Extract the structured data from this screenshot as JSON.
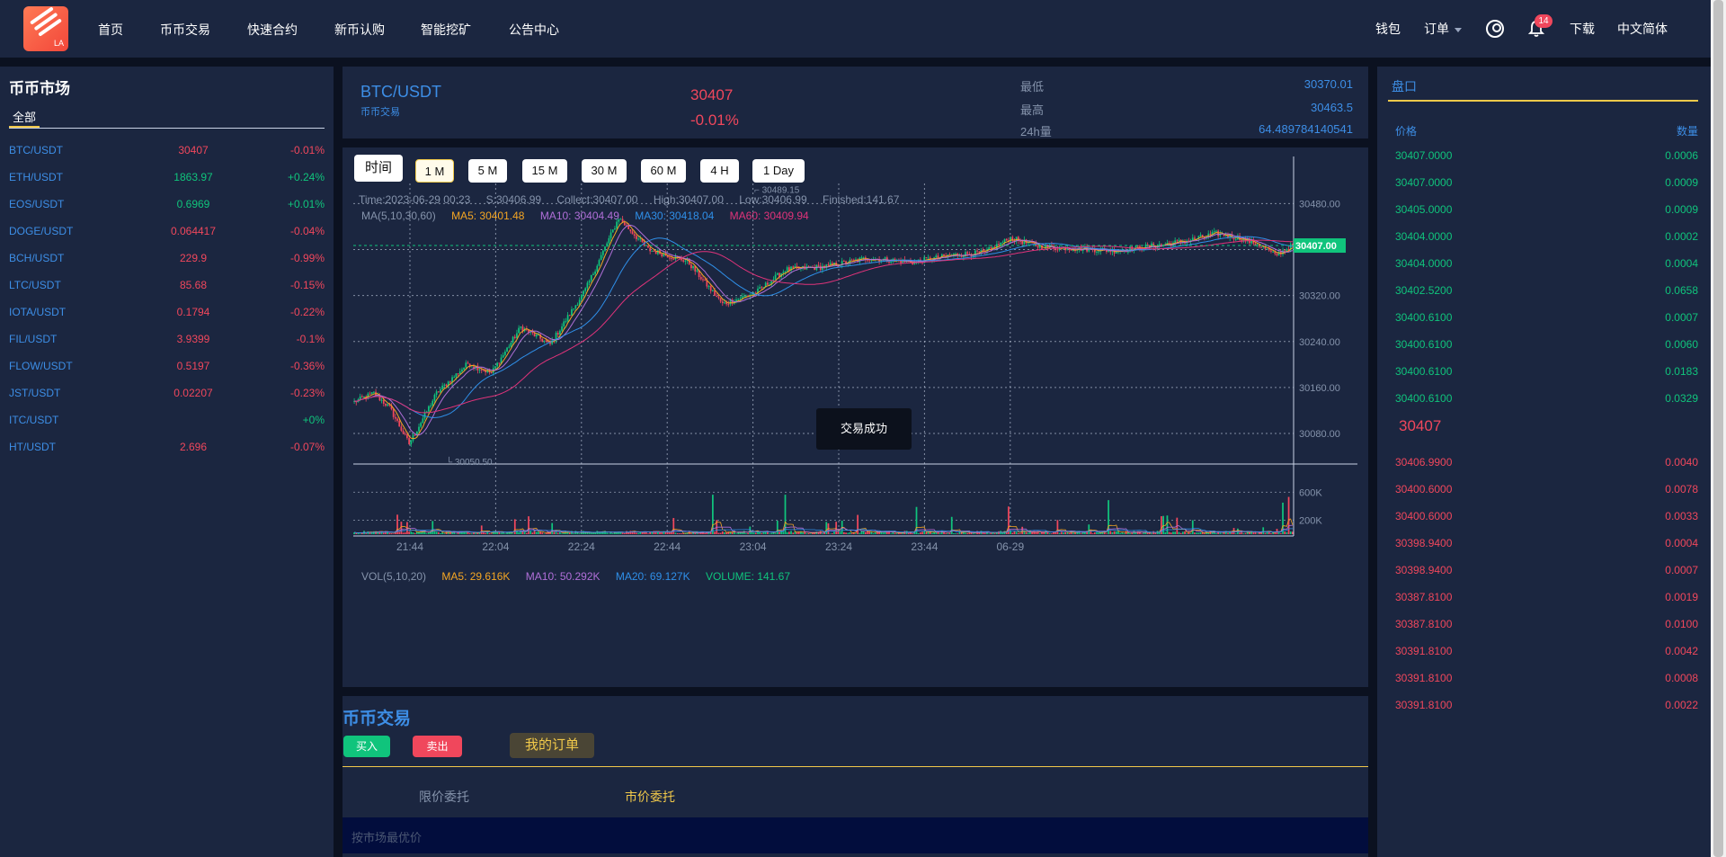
{
  "nav": {
    "logo_text": "LA",
    "items": [
      "首页",
      "币币交易",
      "快速合约",
      "新币认购",
      "智能挖矿",
      "公告中心"
    ],
    "wallet": "钱包",
    "orders": "订单",
    "notification_count": "14",
    "download": "下载",
    "language": "中文简体"
  },
  "market": {
    "title": "币币市场",
    "tab": "全部",
    "rows": [
      {
        "symbol": "BTC/USDT",
        "price": "30407",
        "change": "-0.01%",
        "dir": "down"
      },
      {
        "symbol": "ETH/USDT",
        "price": "1863.97",
        "change": "+0.24%",
        "dir": "up"
      },
      {
        "symbol": "EOS/USDT",
        "price": "0.6969",
        "change": "+0.01%",
        "dir": "up"
      },
      {
        "symbol": "DOGE/USDT",
        "price": "0.064417",
        "change": "-0.04%",
        "dir": "down"
      },
      {
        "symbol": "BCH/USDT",
        "price": "229.9",
        "change": "-0.99%",
        "dir": "down"
      },
      {
        "symbol": "LTC/USDT",
        "price": "85.68",
        "change": "-0.15%",
        "dir": "down"
      },
      {
        "symbol": "IOTA/USDT",
        "price": "0.1794",
        "change": "-0.22%",
        "dir": "down"
      },
      {
        "symbol": "FIL/USDT",
        "price": "3.9399",
        "change": "-0.1%",
        "dir": "down"
      },
      {
        "symbol": "FLOW/USDT",
        "price": "0.5197",
        "change": "-0.36%",
        "dir": "down"
      },
      {
        "symbol": "JST/USDT",
        "price": "0.02207",
        "change": "-0.23%",
        "dir": "down"
      },
      {
        "symbol": "ITC/USDT",
        "price": "",
        "change": "+0%",
        "dir": "up"
      },
      {
        "symbol": "HT/USDT",
        "price": "2.696",
        "change": "-0.07%",
        "dir": "down"
      }
    ]
  },
  "ticker": {
    "pair": "BTC/USDT",
    "subtitle": "币币交易",
    "last": "30407",
    "change": "-0.01%",
    "low_label": "最低",
    "low": "30370.01",
    "high_label": "最高",
    "high": "30463.5",
    "volume_label": "24h量",
    "volume": "64.489784140541"
  },
  "chart_toolbar": {
    "time_label": "时间",
    "intervals": [
      "1 M",
      "5 M",
      "15 M",
      "30 M",
      "60 M",
      "4 H",
      "1 Day"
    ],
    "active": "1 M"
  },
  "chart_legend": {
    "info": [
      "Time:2023-06-29 00:23",
      "S:30406.99",
      "Collect:30407.00",
      "High:30407.00",
      "Low:30406.99",
      "Finished:141.67"
    ],
    "ma": {
      "label": "MA(5,10,30,60)",
      "ma5": "MA5: 30401.48",
      "ma10": "MA10: 30404.49",
      "ma30": "MA30: 30418.04",
      "ma60": "MA60: 30409.94"
    },
    "vol": {
      "label": "VOL(5,10,20)",
      "ma5": "MA5: 29.616K",
      "ma10": "MA10: 50.292K",
      "ma20": "MA20: 69.127K",
      "volume": "VOLUME: 141.67"
    }
  },
  "toast": "交易成功",
  "colors": {
    "up": "#10c47c",
    "down": "#f0475c",
    "ma5": "#f5a623",
    "ma10": "#b06fd8",
    "ma30": "#2f8fe8",
    "ma60": "#e0337a",
    "accent": "#f1c94a"
  },
  "chart_data": {
    "type": "candlestick",
    "x_ticks": [
      "21:44",
      "22:04",
      "22:24",
      "22:44",
      "23:04",
      "23:24",
      "23:44",
      "06-29"
    ],
    "y_ticks": [
      30080,
      30160,
      30240,
      30320,
      30400,
      30480
    ],
    "y_tick_labels": [
      "30080.00",
      "30160.00",
      "30240.00",
      "30320.00",
      "30480.00"
    ],
    "ylim": [
      30030,
      30515
    ],
    "current_price": 30407,
    "current_price_label": "30407.00",
    "max_label": "30489.15",
    "min_label": "30050.50",
    "max_value": 30489.15,
    "min_value": 30050.5,
    "close_anchors": [
      [
        0,
        30135
      ],
      [
        10,
        30150
      ],
      [
        18,
        30125
      ],
      [
        28,
        30062
      ],
      [
        42,
        30150
      ],
      [
        58,
        30202
      ],
      [
        70,
        30185
      ],
      [
        85,
        30265
      ],
      [
        100,
        30235
      ],
      [
        118,
        30330
      ],
      [
        135,
        30455
      ],
      [
        150,
        30400
      ],
      [
        170,
        30380
      ],
      [
        188,
        30305
      ],
      [
        205,
        30325
      ],
      [
        220,
        30365
      ],
      [
        240,
        30370
      ],
      [
        262,
        30385
      ],
      [
        285,
        30378
      ],
      [
        305,
        30390
      ],
      [
        322,
        30395
      ],
      [
        335,
        30420
      ],
      [
        350,
        30405
      ],
      [
        370,
        30402
      ],
      [
        388,
        30398
      ],
      [
        405,
        30405
      ],
      [
        425,
        30415
      ],
      [
        440,
        30428
      ],
      [
        452,
        30420
      ],
      [
        462,
        30408
      ],
      [
        470,
        30390
      ],
      [
        479,
        30407
      ]
    ],
    "vol_ticks": [
      200000,
      600000
    ],
    "vol_tick_labels": [
      "200K",
      "600K"
    ],
    "vol_ylim": [
      0,
      900000
    ],
    "candle_count": 480
  },
  "trade": {
    "title": "币币交易",
    "buy": "买入",
    "sell": "卖出",
    "my_orders": "我的订单",
    "limit_tab": "限价委托",
    "market_tab": "市价委托",
    "price_placeholder": "按市场最优价"
  },
  "book": {
    "title": "盘口",
    "price_header": "价格",
    "qty_header": "数量",
    "bids": [
      [
        "30407.0000",
        "0.0006"
      ],
      [
        "30407.0000",
        "0.0009"
      ],
      [
        "30405.0000",
        "0.0009"
      ],
      [
        "30404.0000",
        "0.0002"
      ],
      [
        "30404.0000",
        "0.0004"
      ],
      [
        "30402.5200",
        "0.0658"
      ],
      [
        "30400.6100",
        "0.0007"
      ],
      [
        "30400.6100",
        "0.0060"
      ],
      [
        "30400.6100",
        "0.0183"
      ],
      [
        "30400.6100",
        "0.0329"
      ]
    ],
    "mid": "30407",
    "asks": [
      [
        "30406.9900",
        "0.0040"
      ],
      [
        "30400.6000",
        "0.0078"
      ],
      [
        "30400.6000",
        "0.0033"
      ],
      [
        "30398.9400",
        "0.0004"
      ],
      [
        "30398.9400",
        "0.0007"
      ],
      [
        "30387.8100",
        "0.0019"
      ],
      [
        "30387.8100",
        "0.0100"
      ],
      [
        "30391.8100",
        "0.0042"
      ],
      [
        "30391.8100",
        "0.0008"
      ],
      [
        "30391.8100",
        "0.0022"
      ]
    ]
  }
}
